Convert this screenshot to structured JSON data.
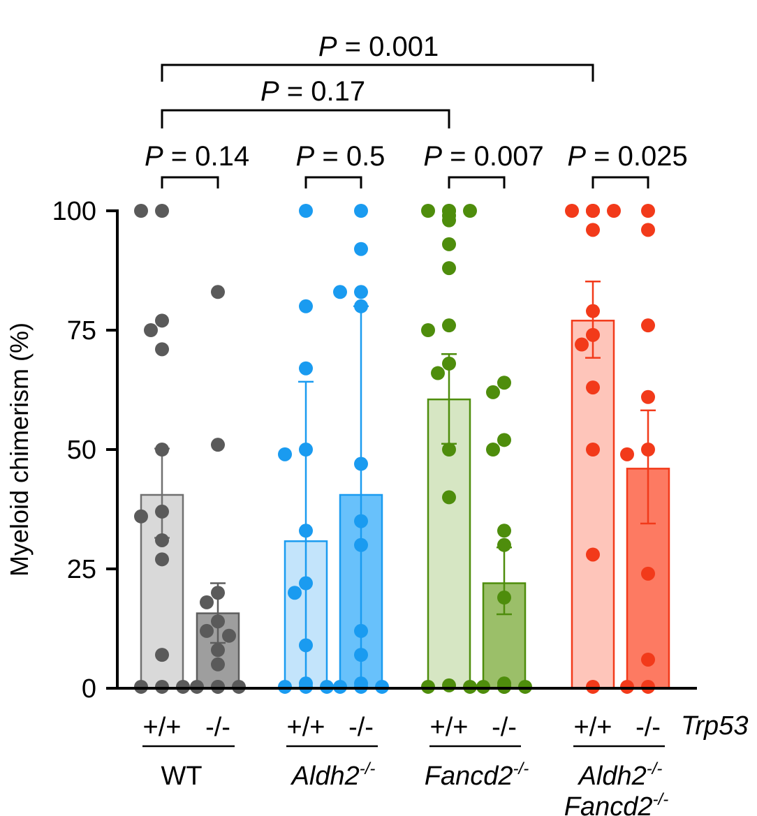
{
  "chart_data": {
    "type": "bar",
    "ylabel": "Myeloid chimerism (%)",
    "ylim": [
      0,
      100
    ],
    "yticks": [
      0,
      25,
      50,
      75,
      100
    ],
    "trp53_label": "Trp53",
    "groups": [
      {
        "name": "WT",
        "sup": "",
        "italic": false,
        "color": "#5a5a5a",
        "bars": [
          {
            "genotype": "+/+",
            "mean": 40.5,
            "sem_low": 31.5,
            "sem_high": 50.2,
            "fill": "#d9d9d9",
            "stroke": "#707070",
            "points": [
              100,
              100,
              77,
              75,
              71,
              50,
              37,
              36,
              31,
              27,
              7,
              0.3,
              0.3,
              0.3
            ]
          },
          {
            "genotype": "-/-",
            "mean": 15.7,
            "sem_low": 9.5,
            "sem_high": 22,
            "fill": "#9e9e9e",
            "stroke": "#5e5e5e",
            "points": [
              83,
              51,
              20,
              18,
              14,
              12,
              11,
              8,
              5,
              0.3,
              0.3,
              0.3,
              0.3
            ]
          }
        ],
        "p_value": "0.14"
      },
      {
        "name": "Aldh2",
        "sup": "-/-",
        "italic": true,
        "color": "#1a9bf0",
        "bars": [
          {
            "genotype": "+/+",
            "mean": 30.8,
            "sem_low": 0,
            "sem_high": 64.2,
            "fill": "#c3e4fb",
            "stroke": "#1a9bf0",
            "points": [
              100,
              80,
              67,
              50,
              49,
              33,
              22,
              20,
              9,
              1,
              0.3,
              0.3,
              0.3
            ]
          },
          {
            "genotype": "-/-",
            "mean": 40.5,
            "sem_low": 0,
            "sem_high": 80,
            "fill": "#68c1fb",
            "stroke": "#1a9bf0",
            "points": [
              100,
              92,
              83,
              83,
              80,
              47,
              35,
              30,
              12,
              7,
              1,
              0.3,
              0.3,
              0.3
            ]
          }
        ],
        "p_value": "0.5"
      },
      {
        "name": "Fancd2",
        "sup": "-/-",
        "italic": true,
        "color": "#4e8d0c",
        "bars": [
          {
            "genotype": "+/+",
            "mean": 60.5,
            "sem_low": 51.2,
            "sem_high": 70,
            "fill": "#d6e6c3",
            "stroke": "#4e8d0c",
            "points": [
              100,
              100,
              100,
              100,
              99,
              98,
              93,
              88,
              76,
              75,
              68,
              66,
              50,
              40,
              0.6,
              0.3,
              0.3
            ]
          },
          {
            "genotype": "-/-",
            "mean": 22,
            "sem_low": 15.5,
            "sem_high": 29.5,
            "fill": "#9bbf69",
            "stroke": "#4e8d0c",
            "points": [
              64,
              62,
              52,
              50,
              33,
              30,
              19,
              1,
              0.3,
              0.3,
              0.3,
              0.3,
              0.3
            ]
          }
        ],
        "p_value": "0.007"
      },
      {
        "name": "Aldh2",
        "name2": "Fancd2",
        "sup": "-/-",
        "italic": true,
        "color": "#f23a1a",
        "bars": [
          {
            "genotype": "+/+",
            "mean": 77,
            "sem_low": 69.2,
            "sem_high": 85.2,
            "fill": "#fec5ba",
            "stroke": "#f23a1a",
            "points": [
              100,
              100,
              100,
              100,
              100,
              96,
              79,
              74,
              72,
              63,
              50,
              28,
              0.3
            ]
          },
          {
            "genotype": "-/-",
            "mean": 46,
            "sem_low": 34.5,
            "sem_high": 58.2,
            "fill": "#fd7a62",
            "stroke": "#f23a1a",
            "points": [
              100,
              96,
              76,
              61,
              50,
              49,
              24,
              6,
              0.3,
              0.3
            ]
          }
        ],
        "p_value": "0.025"
      }
    ],
    "comparisons": [
      {
        "between": "Fancd2-/- Trp53+/+ vs WT Trp53+/+",
        "p_value": "0.17"
      },
      {
        "between": "Aldh2-/- Fancd2-/- Trp53+/+ vs WT Trp53+/+",
        "p_value": "0.001"
      }
    ],
    "p_prefix": "P",
    "p_eq": " = "
  }
}
